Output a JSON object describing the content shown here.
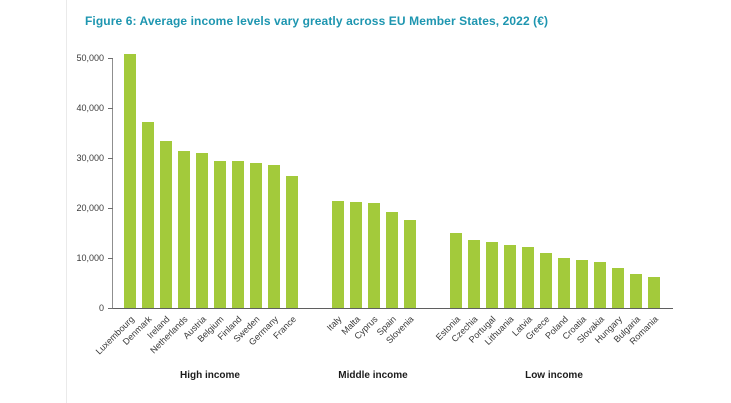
{
  "title": "Figure 6: Average income levels vary greatly across EU Member States, 2022 (€)",
  "colors": {
    "bar": "#a3ca3b",
    "title": "#1e96b0",
    "axis": "#6e6e6e",
    "tick_text": "#3c3c3c"
  },
  "chart_data": {
    "type": "bar",
    "title": "Figure 6: Average income levels vary greatly across EU Member States, 2022 (€)",
    "xlabel": "",
    "ylabel": "",
    "ylim": [
      0,
      50000
    ],
    "yticks": [
      0,
      10000,
      20000,
      30000,
      40000,
      50000
    ],
    "ytick_labels": [
      "0",
      "10,000",
      "20,000",
      "30,000",
      "40,000",
      "50,000"
    ],
    "grid": false,
    "legend": false,
    "groups": [
      {
        "label": "High income",
        "categories": [
          "Luxembourg",
          "Denmark",
          "Ireland",
          "Netherlands",
          "Austria",
          "Belgium",
          "Finland",
          "Sweden",
          "Germany",
          "France"
        ],
        "values": [
          50800,
          37200,
          33500,
          31400,
          31100,
          29500,
          29400,
          29000,
          28700,
          26500
        ]
      },
      {
        "label": "Middle income",
        "categories": [
          "Italy",
          "Malta",
          "Cyprus",
          "Spain",
          "Slovenia"
        ],
        "values": [
          21500,
          21200,
          21000,
          19300,
          17600
        ]
      },
      {
        "label": "Low income",
        "categories": [
          "Estonia",
          "Czechia",
          "Portugal",
          "Lithuania",
          "Latvia",
          "Greece",
          "Poland",
          "Croatia",
          "Slovakia",
          "Hungary",
          "Bulgaria",
          "Romania"
        ],
        "values": [
          15000,
          13600,
          13200,
          12600,
          12200,
          11000,
          10100,
          9600,
          9300,
          8100,
          6900,
          6300
        ]
      }
    ]
  }
}
